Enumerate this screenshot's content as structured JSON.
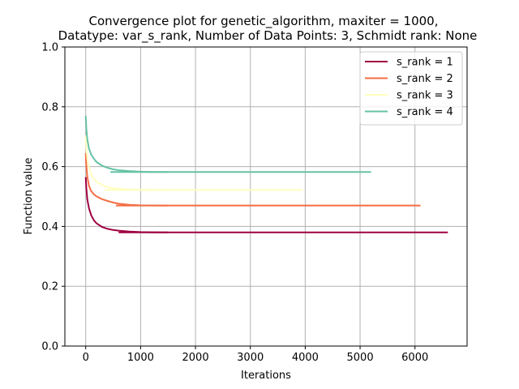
{
  "chart_data": {
    "type": "line",
    "title_lines": [
      "Convergence plot for genetic_algorithm, maxiter = 1000,",
      "Datatype: var_s_rank, Number of Data Points: 3, Schmidt rank: None"
    ],
    "xlabel": "Iterations",
    "ylabel": "Function value",
    "xlim": [
      -380,
      6950
    ],
    "ylim": [
      0.0,
      1.0
    ],
    "xticks": [
      0,
      1000,
      2000,
      3000,
      4000,
      5000,
      6000
    ],
    "yticks": [
      0.0,
      0.2,
      0.4,
      0.6,
      0.8,
      1.0
    ],
    "xtick_labels": [
      "0",
      "1000",
      "2000",
      "3000",
      "4000",
      "5000",
      "6000"
    ],
    "ytick_labels": [
      "0.0",
      "0.2",
      "0.4",
      "0.6",
      "0.8",
      "1.0"
    ],
    "grid": true,
    "legend_position": "top-right",
    "series": [
      {
        "name": "s_rank = 1",
        "color": "#9e0142",
        "x": [
          0,
          10,
          30,
          60,
          100,
          150,
          200,
          300,
          400,
          500,
          600,
          800,
          1000,
          1200,
          1400,
          1500
        ],
        "y": [
          0.565,
          0.53,
          0.49,
          0.46,
          0.437,
          0.42,
          0.41,
          0.398,
          0.392,
          0.388,
          0.386,
          0.383,
          0.381,
          0.3805,
          0.3802,
          0.38
        ],
        "tail_x": [
          600,
          6600
        ],
        "tail_y": [
          0.38,
          0.38
        ]
      },
      {
        "name": "s_rank = 2",
        "color": "#f46d43",
        "x": [
          0,
          10,
          30,
          60,
          100,
          150,
          200,
          300,
          400,
          500,
          600,
          800,
          1000,
          1200,
          1400,
          1500
        ],
        "y": [
          0.645,
          0.605,
          0.565,
          0.535,
          0.518,
          0.507,
          0.5,
          0.491,
          0.485,
          0.48,
          0.476,
          0.472,
          0.4705,
          0.4702,
          0.47,
          0.47
        ],
        "tail_x": [
          550,
          6100
        ],
        "tail_y": [
          0.47,
          0.47
        ]
      },
      {
        "name": "s_rank = 3",
        "color": "#ffffbf",
        "x": [
          0,
          10,
          30,
          60,
          100,
          150,
          200,
          300,
          400,
          500,
          600,
          800,
          1000,
          1200,
          1400,
          1500
        ],
        "y": [
          0.705,
          0.665,
          0.625,
          0.595,
          0.573,
          0.559,
          0.549,
          0.538,
          0.532,
          0.528,
          0.526,
          0.5235,
          0.5225,
          0.522,
          0.522,
          0.522
        ],
        "tail_x": [
          350,
          3950
        ],
        "tail_y": [
          0.522,
          0.522
        ]
      },
      {
        "name": "s_rank = 4",
        "color": "#66c2a5",
        "x": [
          0,
          10,
          30,
          60,
          100,
          150,
          200,
          300,
          400,
          500,
          600,
          800,
          1000,
          1200,
          1400,
          1500
        ],
        "y": [
          0.77,
          0.73,
          0.69,
          0.66,
          0.64,
          0.626,
          0.615,
          0.603,
          0.596,
          0.591,
          0.588,
          0.585,
          0.583,
          0.582,
          0.582,
          0.582
        ],
        "tail_x": [
          450,
          5200
        ],
        "tail_y": [
          0.582,
          0.582
        ]
      }
    ]
  }
}
